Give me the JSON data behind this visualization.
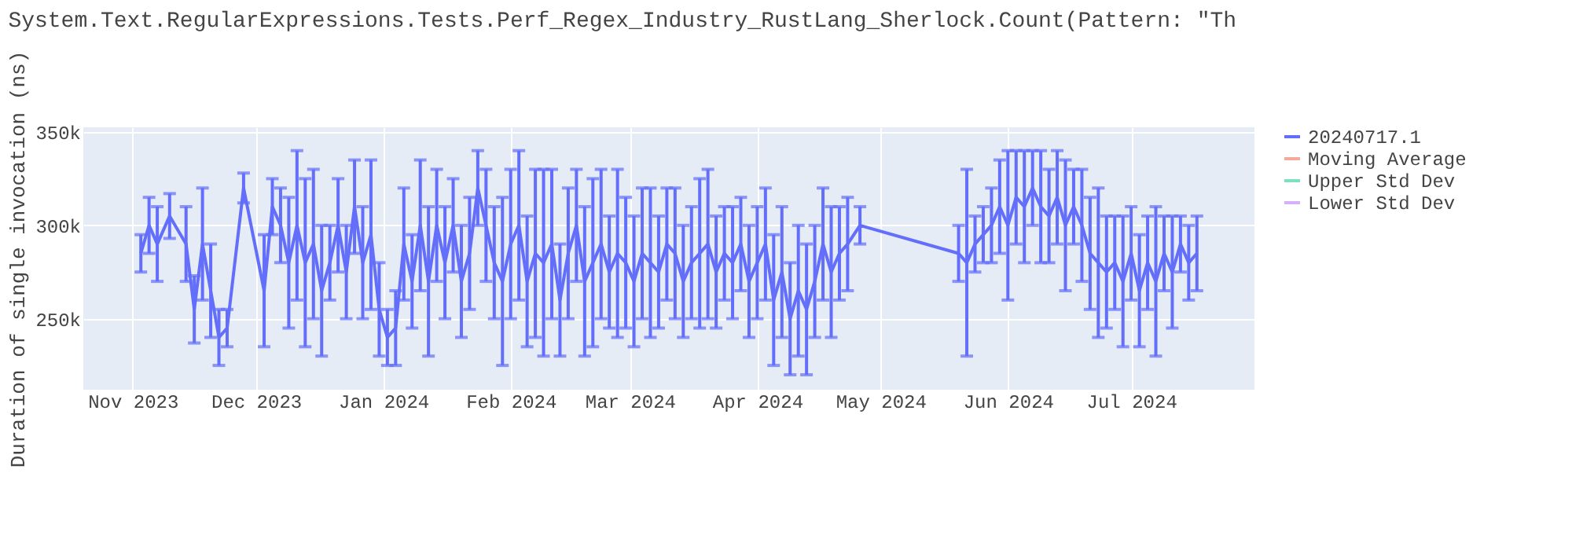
{
  "chart_data": {
    "type": "line",
    "title": "System.Text.RegularExpressions.Tests.Perf_Regex_Industry_RustLang_Sherlock.Count(Pattern: \"Th",
    "ylabel": "Duration of single invocation (ns)",
    "xlim": [
      "2023-10-20",
      "2024-07-31"
    ],
    "xticks": [
      {
        "value": "2023-11-01",
        "label": "Nov 2023"
      },
      {
        "value": "2023-12-01",
        "label": "Dec 2023"
      },
      {
        "value": "2024-01-01",
        "label": "Jan 2024"
      },
      {
        "value": "2024-02-01",
        "label": "Feb 2024"
      },
      {
        "value": "2024-03-01",
        "label": "Mar 2024"
      },
      {
        "value": "2024-04-01",
        "label": "Apr 2024"
      },
      {
        "value": "2024-05-01",
        "label": "May 2024"
      },
      {
        "value": "2024-06-01",
        "label": "Jun 2024"
      },
      {
        "value": "2024-07-01",
        "label": "Jul 2024"
      }
    ],
    "ylim": [
      212000,
      352500
    ],
    "yticks": [
      {
        "value": 250000,
        "label": "250k"
      },
      {
        "value": 300000,
        "label": "300k"
      },
      {
        "value": 350000,
        "label": "350k"
      }
    ],
    "grid": true,
    "legend": "top right",
    "series": [
      {
        "name": "20240717.1",
        "color": "#636efa",
        "x": [
          "2023-11-03",
          "2023-11-05",
          "2023-11-07",
          "2023-11-10",
          "2023-11-14",
          "2023-11-16",
          "2023-11-18",
          "2023-11-20",
          "2023-11-22",
          "2023-11-24",
          "2023-11-28",
          "2023-12-03",
          "2023-12-05",
          "2023-12-07",
          "2023-12-09",
          "2023-12-11",
          "2023-12-13",
          "2023-12-15",
          "2023-12-17",
          "2023-12-19",
          "2023-12-21",
          "2023-12-23",
          "2023-12-25",
          "2023-12-27",
          "2023-12-29",
          "2023-12-31",
          "2024-01-02",
          "2024-01-04",
          "2024-01-06",
          "2024-01-08",
          "2024-01-10",
          "2024-01-12",
          "2024-01-14",
          "2024-01-16",
          "2024-01-18",
          "2024-01-20",
          "2024-01-22",
          "2024-01-24",
          "2024-01-26",
          "2024-01-28",
          "2024-01-30",
          "2024-02-01",
          "2024-02-03",
          "2024-02-05",
          "2024-02-07",
          "2024-02-09",
          "2024-02-11",
          "2024-02-13",
          "2024-02-15",
          "2024-02-17",
          "2024-02-19",
          "2024-02-21",
          "2024-02-23",
          "2024-02-25",
          "2024-02-27",
          "2024-02-29",
          "2024-03-02",
          "2024-03-04",
          "2024-03-06",
          "2024-03-08",
          "2024-03-10",
          "2024-03-12",
          "2024-03-14",
          "2024-03-16",
          "2024-03-18",
          "2024-03-20",
          "2024-03-22",
          "2024-03-24",
          "2024-03-26",
          "2024-03-28",
          "2024-03-30",
          "2024-04-01",
          "2024-04-03",
          "2024-04-05",
          "2024-04-07",
          "2024-04-09",
          "2024-04-11",
          "2024-04-13",
          "2024-04-15",
          "2024-04-17",
          "2024-04-19",
          "2024-04-21",
          "2024-04-23",
          "2024-04-26",
          "2024-05-20",
          "2024-05-22",
          "2024-05-24",
          "2024-05-26",
          "2024-05-28",
          "2024-05-30",
          "2024-06-01",
          "2024-06-03",
          "2024-06-05",
          "2024-06-07",
          "2024-06-09",
          "2024-06-11",
          "2024-06-13",
          "2024-06-15",
          "2024-06-17",
          "2024-06-19",
          "2024-06-21",
          "2024-06-23",
          "2024-06-25",
          "2024-06-27",
          "2024-06-29",
          "2024-07-01",
          "2024-07-03",
          "2024-07-05",
          "2024-07-07",
          "2024-07-09",
          "2024-07-11",
          "2024-07-13",
          "2024-07-15",
          "2024-07-17"
        ],
        "values": [
          285000,
          300000,
          290000,
          305000,
          290000,
          255000,
          290000,
          265000,
          240000,
          245000,
          320000,
          265000,
          310000,
          300000,
          280000,
          300000,
          280000,
          290000,
          265000,
          280000,
          300000,
          275000,
          310000,
          280000,
          295000,
          255000,
          240000,
          245000,
          290000,
          270000,
          300000,
          270000,
          300000,
          280000,
          300000,
          270000,
          285000,
          320000,
          300000,
          280000,
          270000,
          290000,
          300000,
          270000,
          285000,
          280000,
          290000,
          260000,
          285000,
          300000,
          270000,
          280000,
          290000,
          275000,
          285000,
          280000,
          270000,
          285000,
          280000,
          275000,
          290000,
          285000,
          270000,
          280000,
          285000,
          290000,
          275000,
          285000,
          280000,
          290000,
          270000,
          280000,
          290000,
          260000,
          275000,
          250000,
          265000,
          255000,
          270000,
          290000,
          275000,
          285000,
          290000,
          300000,
          285000,
          280000,
          290000,
          295000,
          300000,
          310000,
          300000,
          315000,
          310000,
          320000,
          310000,
          305000,
          315000,
          300000,
          310000,
          300000,
          285000,
          280000,
          275000,
          280000,
          270000,
          285000,
          265000,
          280000,
          270000,
          285000,
          275000,
          290000,
          280000,
          285000
        ],
        "errors": [
          10000,
          15000,
          20000,
          12000,
          20000,
          18000,
          30000,
          25000,
          15000,
          10000,
          8000,
          30000,
          15000,
          20000,
          35000,
          40000,
          45000,
          40000,
          35000,
          20000,
          25000,
          25000,
          25000,
          30000,
          40000,
          25000,
          15000,
          20000,
          30000,
          25000,
          35000,
          40000,
          30000,
          30000,
          25000,
          30000,
          30000,
          20000,
          30000,
          30000,
          45000,
          40000,
          40000,
          35000,
          45000,
          50000,
          40000,
          30000,
          35000,
          30000,
          40000,
          45000,
          40000,
          30000,
          45000,
          35000,
          35000,
          35000,
          40000,
          30000,
          30000,
          35000,
          30000,
          30000,
          40000,
          40000,
          30000,
          25000,
          30000,
          25000,
          30000,
          30000,
          30000,
          35000,
          35000,
          30000,
          35000,
          35000,
          30000,
          30000,
          35000,
          25000,
          25000,
          10000,
          15000,
          50000,
          15000,
          15000,
          20000,
          25000,
          40000,
          25000,
          30000,
          20000,
          30000,
          25000,
          25000,
          35000,
          20000,
          30000,
          30000,
          40000,
          30000,
          25000,
          35000,
          25000,
          30000,
          25000,
          40000,
          20000,
          30000,
          15000,
          20000,
          20000
        ]
      },
      {
        "name": "Moving Average",
        "color": "#f4a99a"
      },
      {
        "name": "Upper Std Dev",
        "color": "#7ee0c0"
      },
      {
        "name": "Lower Std Dev",
        "color": "#d5b1fc"
      }
    ]
  }
}
